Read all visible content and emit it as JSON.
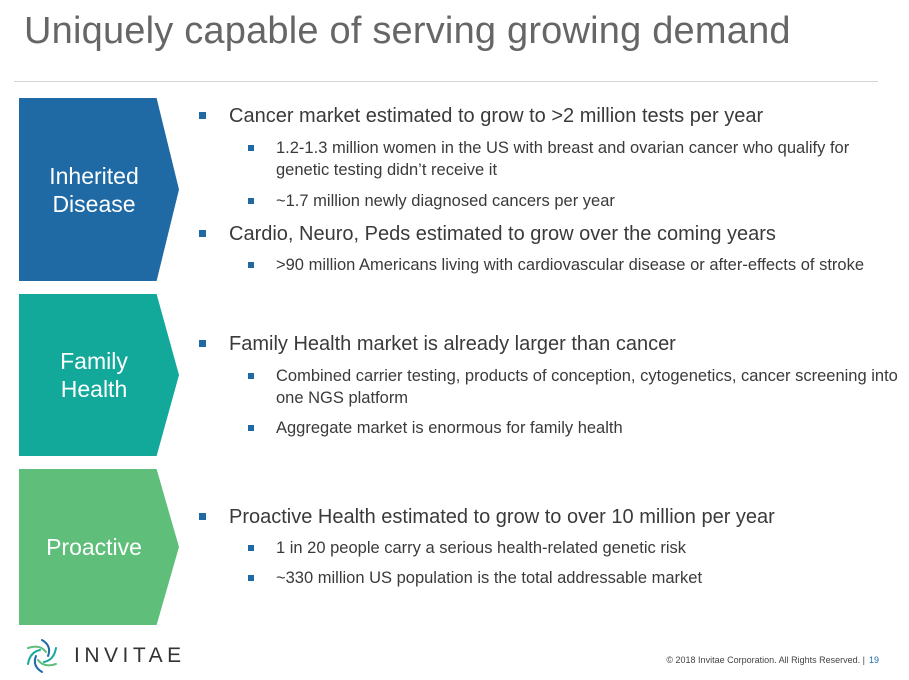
{
  "title": "Uniquely capable of serving growing demand",
  "colors": {
    "inherited": "#1f6aa5",
    "family": "#12a89a",
    "proactive": "#5fbf7a",
    "bullet": "#1f6aa5"
  },
  "sections": [
    {
      "label": "Inherited\nDisease",
      "bullets": [
        {
          "text": "Cancer market estimated to grow to >2 million tests per year",
          "subs": [
            "1.2-1.3 million women in the US with breast and ovarian cancer who qualify for genetic testing didn’t receive it",
            "~1.7 million newly diagnosed cancers per year"
          ]
        },
        {
          "text": "Cardio, Neuro, Peds estimated to grow over the coming years",
          "subs": [
            ">90 million Americans living with cardiovascular disease or after-effects of stroke"
          ]
        }
      ]
    },
    {
      "label": "Family\nHealth",
      "bullets": [
        {
          "text": "Family Health market is already larger than cancer",
          "subs": [
            "Combined carrier testing, products of conception, cytogenetics, cancer screening into one NGS platform",
            "Aggregate market is enormous for family health"
          ]
        }
      ]
    },
    {
      "label": "Proactive",
      "bullets": [
        {
          "text": "Proactive Health estimated to grow to over 10 million per year",
          "subs": [
            "1 in 20 people carry a serious health-related genetic risk",
            "~330 million US population is the total addressable market"
          ]
        }
      ]
    }
  ],
  "footer": {
    "logo_text": "INVITAE",
    "copyright": "© 2018 Invitae Corporation. All Rights Reserved. |",
    "page_number": "19"
  }
}
